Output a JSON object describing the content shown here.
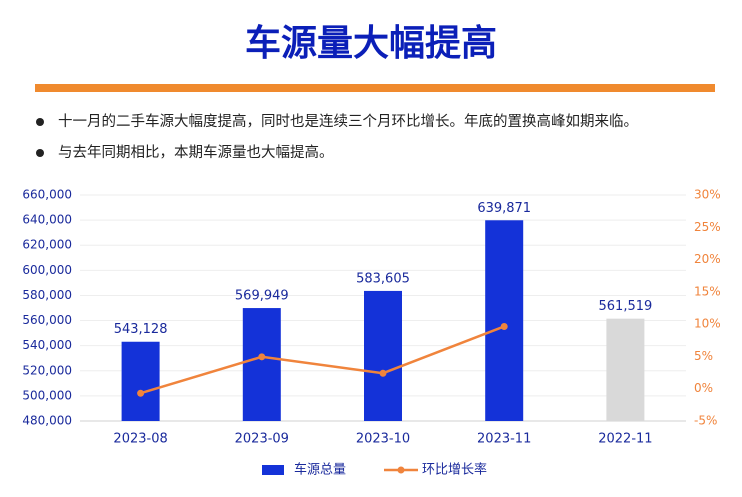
{
  "title": "车源量大幅提高",
  "bullets": [
    "十一月的二手车源大幅度提高，同时也是连续三个月环比增长。年底的置换高峰如期来临。",
    "与去年同期相比，本期车源量也大幅提高。"
  ],
  "chart_data": {
    "type": "bar",
    "categories": [
      "2023-08",
      "2023-09",
      "2023-10",
      "2023-11",
      "2022-11"
    ],
    "series": [
      {
        "name": "车源总量",
        "type": "bar",
        "color": "#1432d8",
        "colors": [
          "#1432d8",
          "#1432d8",
          "#1432d8",
          "#1432d8",
          "#d9d9d9"
        ],
        "values": [
          543128,
          569949,
          583605,
          639871,
          561519
        ],
        "value_labels": [
          "543,128",
          "569,949",
          "583,605",
          "639,871",
          "561,519"
        ]
      },
      {
        "name": "环比增长率",
        "type": "line",
        "axis": "y2",
        "color": "#f0843c",
        "values": [
          -0.7,
          4.94,
          2.4,
          9.64,
          null
        ]
      }
    ],
    "ylim": [
      480000,
      660000
    ],
    "yticks": [
      {
        "value": 480000,
        "label": "480,000"
      },
      {
        "value": 500000,
        "label": "500,000"
      },
      {
        "value": 520000,
        "label": "520,000"
      },
      {
        "value": 540000,
        "label": "540,000"
      },
      {
        "value": 560000,
        "label": "560,000"
      },
      {
        "value": 580000,
        "label": "580,000"
      },
      {
        "value": 600000,
        "label": "600,000"
      },
      {
        "value": 620000,
        "label": "620,000"
      },
      {
        "value": 640000,
        "label": "640,000"
      },
      {
        "value": 660000,
        "label": "660,000"
      }
    ],
    "y2lim": [
      -5,
      30
    ],
    "y2ticks": [
      {
        "value": -5,
        "label": "-5%"
      },
      {
        "value": 0,
        "label": "0%"
      },
      {
        "value": 5,
        "label": "5%"
      },
      {
        "value": 10,
        "label": "10%"
      },
      {
        "value": 15,
        "label": "15%"
      },
      {
        "value": 20,
        "label": "20%"
      },
      {
        "value": 25,
        "label": "25%"
      },
      {
        "value": 30,
        "label": "30%"
      }
    ],
    "grid": true,
    "legend": "bottom"
  }
}
